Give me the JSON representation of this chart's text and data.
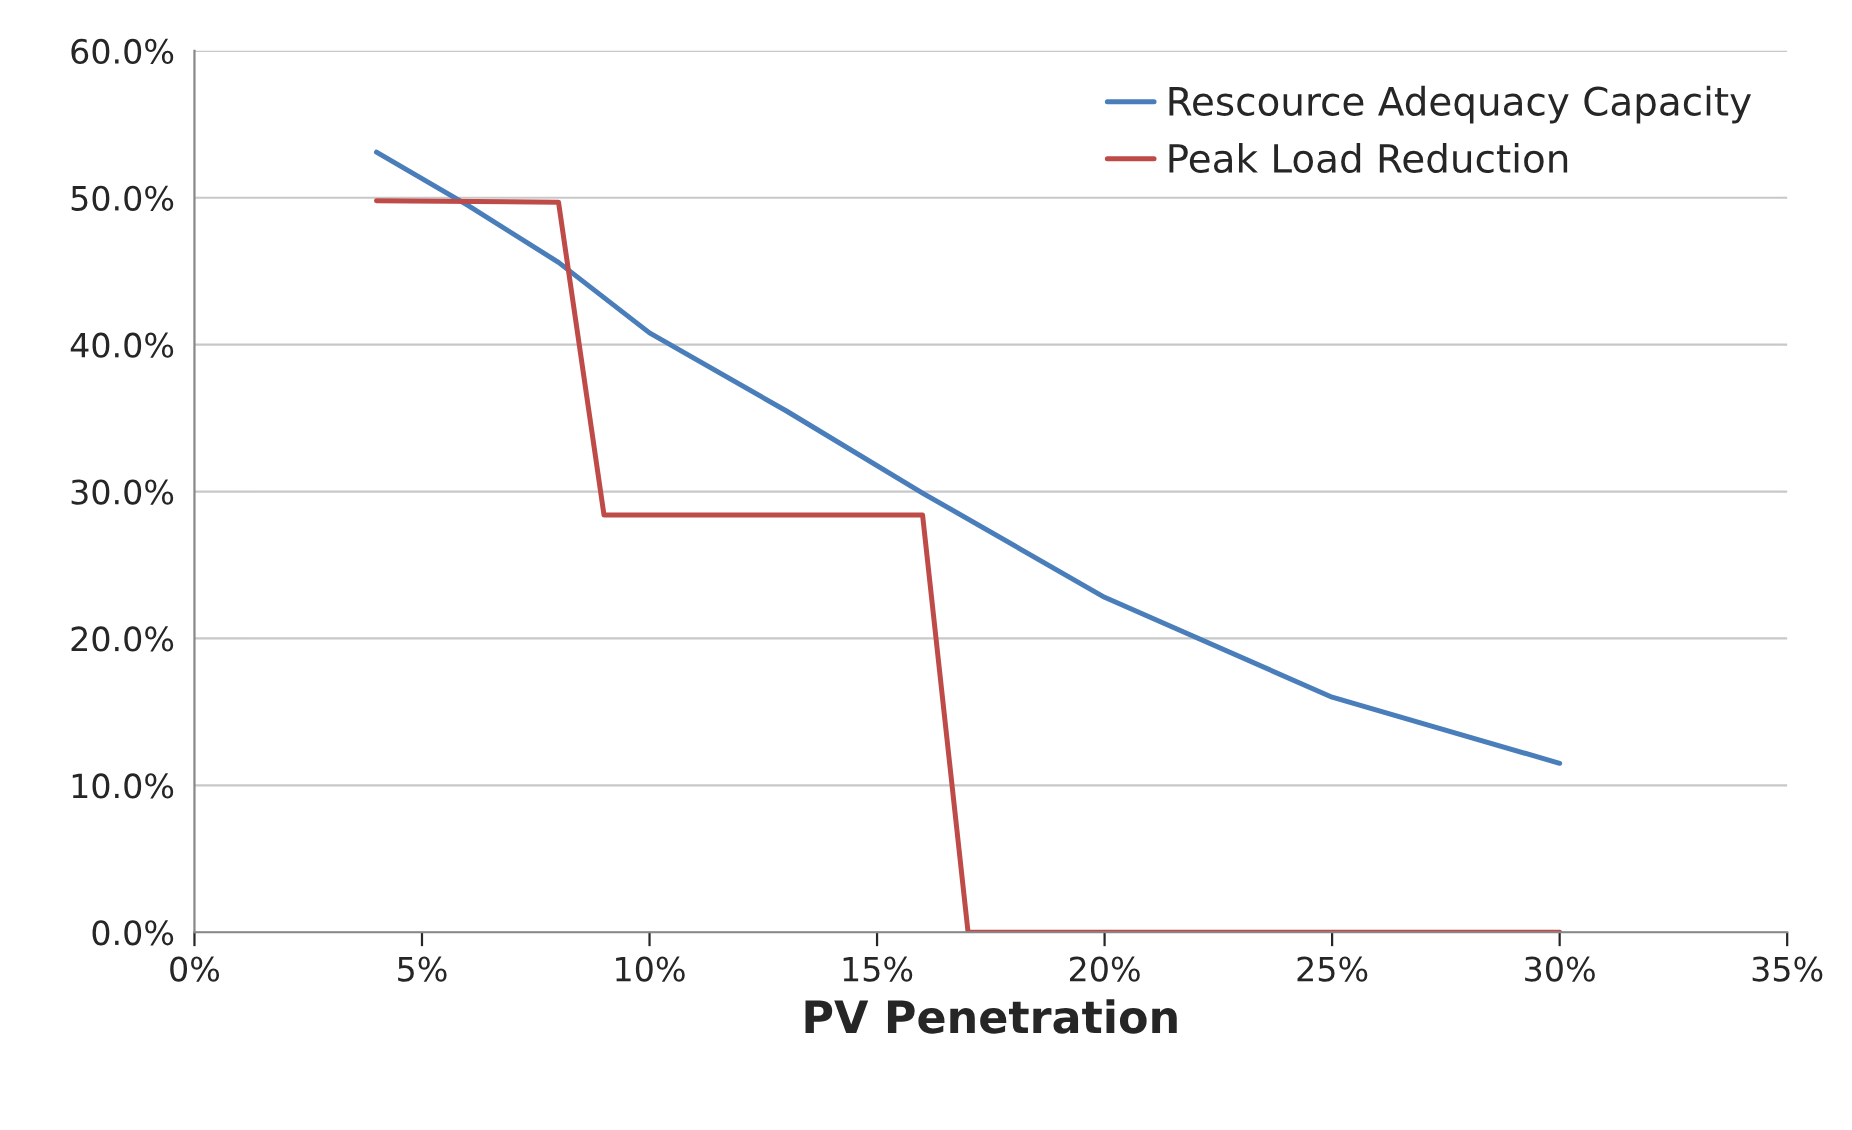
{
  "chart_data": {
    "type": "line",
    "xlabel": "PV Penetration",
    "xlim": [
      0,
      35
    ],
    "xticks": [
      {
        "value": 0,
        "label": "0%"
      },
      {
        "value": 5,
        "label": "5%"
      },
      {
        "value": 10,
        "label": "10%"
      },
      {
        "value": 15,
        "label": "15%"
      },
      {
        "value": 20,
        "label": "20%"
      },
      {
        "value": 25,
        "label": "25%"
      },
      {
        "value": 30,
        "label": "30%"
      },
      {
        "value": 35,
        "label": "35%"
      }
    ],
    "ylim": [
      0,
      60
    ],
    "yticks": [
      {
        "value": 0,
        "label": "0.0%"
      },
      {
        "value": 10,
        "label": "10.0%"
      },
      {
        "value": 20,
        "label": "20.0%"
      },
      {
        "value": 30,
        "label": "30.0%"
      },
      {
        "value": 40,
        "label": "40.0%"
      },
      {
        "value": 50,
        "label": "50.0%"
      },
      {
        "value": 60,
        "label": "60.0%"
      }
    ],
    "grid": "y",
    "legend": "top right",
    "marker": "none",
    "line_style": "solid",
    "series": [
      {
        "name": "Rescource Adequacy Capacity",
        "color": "#4a7ebb",
        "x": [
          4,
          6,
          8,
          10,
          13,
          16,
          20,
          25,
          30
        ],
        "values": [
          53.1,
          49.5,
          45.6,
          40.8,
          35.5,
          29.9,
          22.8,
          16.0,
          11.5
        ]
      },
      {
        "name": "Peak Load Reduction",
        "color": "#be4b48",
        "x": [
          4,
          8,
          9,
          16,
          17,
          30
        ],
        "values": [
          49.8,
          49.7,
          28.4,
          28.4,
          0,
          0
        ]
      }
    ]
  }
}
